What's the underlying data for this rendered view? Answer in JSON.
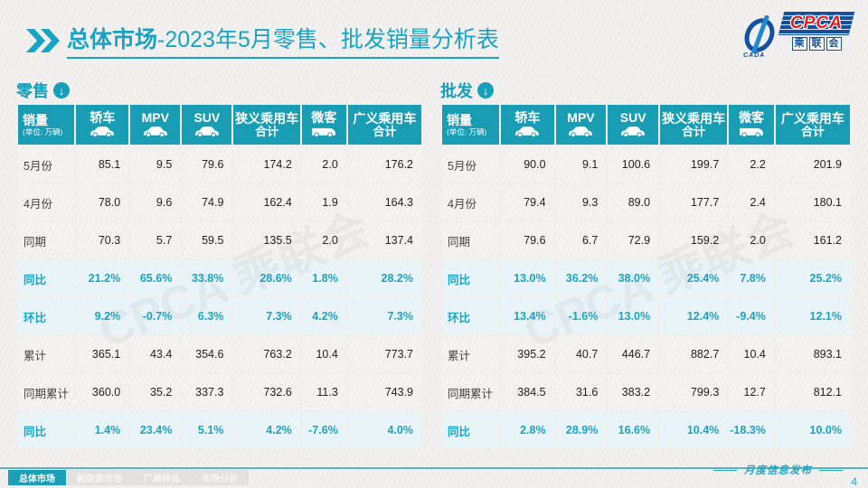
{
  "title": {
    "highlight": "总体市场",
    "rest": "-2023年5月零售、批发销量分析表"
  },
  "logo": {
    "name": "CPCA",
    "cn_chars": [
      "乘",
      "联",
      "会"
    ],
    "sub": "CADA"
  },
  "colors": {
    "accent_teal": "#189db4",
    "title_teal": "#17a3c2",
    "pct_text": "#18a5c4",
    "pct_row_bg": "#e8f4f8",
    "logo_blue": "#1450a0",
    "logo_red": "#e02020"
  },
  "icons": {
    "chevron": "double-chevron-icon",
    "section_arrow": "down-arrow-circle-icon"
  },
  "first_col": {
    "title": "销量",
    "unit": "(单位: 万辆)"
  },
  "columns": [
    {
      "label": "轿车",
      "label2": "",
      "icon": "sedan-icon"
    },
    {
      "label": "MPV",
      "label2": "",
      "icon": "mpv-icon"
    },
    {
      "label": "SUV",
      "label2": "",
      "icon": "suv-icon"
    },
    {
      "label": "狭义乘用车",
      "label2": "合计",
      "icon": ""
    },
    {
      "label": "微客",
      "label2": "",
      "icon": "van-icon"
    },
    {
      "label": "广义乘用车",
      "label2": "合计",
      "icon": ""
    }
  ],
  "watermark_text": "CPCA 乘联会",
  "chart_data": [
    {
      "type": "table",
      "title": "零售",
      "columns": [
        "轿车",
        "MPV",
        "SUV",
        "狭义乘用车合计",
        "微客",
        "广义乘用车合计"
      ],
      "rows": [
        {
          "label": "5月份",
          "kind": "value",
          "cells": [
            "85.1",
            "9.5",
            "79.6",
            "174.2",
            "2.0",
            "176.2"
          ]
        },
        {
          "label": "4月份",
          "kind": "value",
          "cells": [
            "78.0",
            "9.6",
            "74.9",
            "162.4",
            "1.9",
            "164.3"
          ]
        },
        {
          "label": "同期",
          "kind": "value",
          "cells": [
            "70.3",
            "5.7",
            "59.5",
            "135.5",
            "2.0",
            "137.4"
          ]
        },
        {
          "label": "同比",
          "kind": "pct",
          "cells": [
            "21.2%",
            "65.6%",
            "33.8%",
            "28.6%",
            "1.8%",
            "28.2%"
          ]
        },
        {
          "label": "环比",
          "kind": "pct",
          "cells": [
            "9.2%",
            "-0.7%",
            "6.3%",
            "7.3%",
            "4.2%",
            "7.3%"
          ]
        },
        {
          "label": "累计",
          "kind": "value",
          "cells": [
            "365.1",
            "43.4",
            "354.6",
            "763.2",
            "10.4",
            "773.7"
          ]
        },
        {
          "label": "同期累计",
          "kind": "value",
          "cells": [
            "360.0",
            "35.2",
            "337.3",
            "732.6",
            "11.3",
            "743.9"
          ]
        },
        {
          "label": "同比",
          "kind": "pct",
          "cells": [
            "1.4%",
            "23.4%",
            "5.1%",
            "4.2%",
            "-7.6%",
            "4.0%"
          ]
        }
      ]
    },
    {
      "type": "table",
      "title": "批发",
      "columns": [
        "轿车",
        "MPV",
        "SUV",
        "狭义乘用车合计",
        "微客",
        "广义乘用车合计"
      ],
      "rows": [
        {
          "label": "5月份",
          "kind": "value",
          "cells": [
            "90.0",
            "9.1",
            "100.6",
            "199.7",
            "2.2",
            "201.9"
          ]
        },
        {
          "label": "4月份",
          "kind": "value",
          "cells": [
            "79.4",
            "9.3",
            "89.0",
            "177.7",
            "2.4",
            "180.1"
          ]
        },
        {
          "label": "同期",
          "kind": "value",
          "cells": [
            "79.6",
            "6.7",
            "72.9",
            "159.2",
            "2.0",
            "161.2"
          ]
        },
        {
          "label": "同比",
          "kind": "pct",
          "cells": [
            "13.0%",
            "36.2%",
            "38.0%",
            "25.4%",
            "7.8%",
            "25.2%"
          ]
        },
        {
          "label": "环比",
          "kind": "pct",
          "cells": [
            "13.4%",
            "-1.6%",
            "13.0%",
            "12.4%",
            "-9.4%",
            "12.1%"
          ]
        },
        {
          "label": "累计",
          "kind": "value",
          "cells": [
            "395.2",
            "40.7",
            "446.7",
            "882.7",
            "10.4",
            "893.1"
          ]
        },
        {
          "label": "同期累计",
          "kind": "value",
          "cells": [
            "384.5",
            "31.6",
            "383.2",
            "799.3",
            "12.7",
            "812.1"
          ]
        },
        {
          "label": "同比",
          "kind": "pct",
          "cells": [
            "2.8%",
            "28.9%",
            "16.6%",
            "10.4%",
            "-18.3%",
            "10.0%"
          ]
        }
      ]
    }
  ],
  "footer": {
    "tabs": [
      {
        "label": "总体市场",
        "active": true
      },
      {
        "label": "新能源市场",
        "active": false
      },
      {
        "label": "厂商排名",
        "active": false
      },
      {
        "label": "市场分析",
        "active": false
      }
    ],
    "publication": "月度信息发布",
    "page": "4"
  }
}
